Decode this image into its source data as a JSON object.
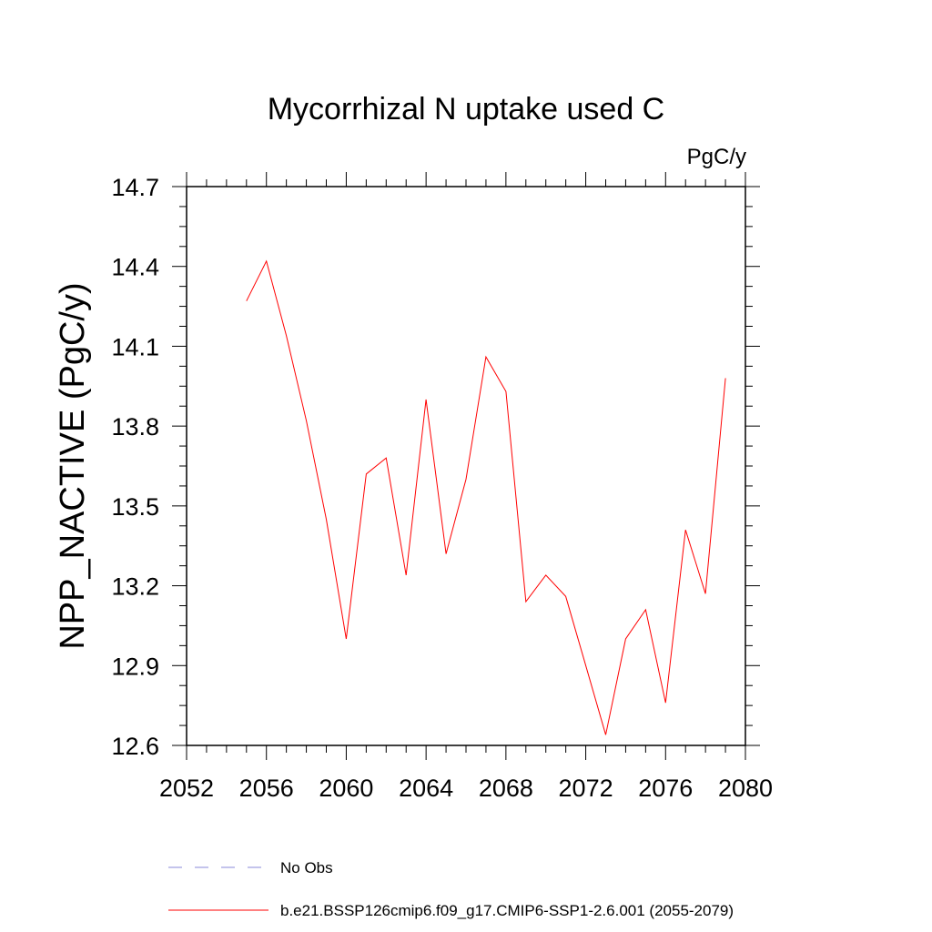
{
  "chart_data": {
    "type": "line",
    "title": "Mycorrhizal N uptake used C",
    "units": "PgC/y",
    "xlabel": "",
    "ylabel": "NPP_NACTIVE  (PgC/y)",
    "xlim": [
      2052,
      2080
    ],
    "ylim": [
      12.6,
      14.7
    ],
    "xticks": [
      2052,
      2056,
      2060,
      2064,
      2068,
      2072,
      2076,
      2080
    ],
    "yticks": [
      12.6,
      12.9,
      13.2,
      13.5,
      13.8,
      14.1,
      14.4,
      14.7
    ],
    "ytick_labels": [
      "12.6",
      "12.9",
      "13.2",
      "13.5",
      "13.8",
      "14.1",
      "14.4",
      "14.7"
    ],
    "grid": false,
    "series": [
      {
        "name": "b.e21.BSSP126cmip6.f09_g17.CMIP6-SSP1-2.6.001 (2055-2079)",
        "color": "#ff0000",
        "style": "solid",
        "x": [
          2055,
          2056,
          2057,
          2058,
          2059,
          2060,
          2061,
          2062,
          2063,
          2064,
          2065,
          2066,
          2067,
          2068,
          2069,
          2070,
          2071,
          2072,
          2073,
          2074,
          2075,
          2076,
          2077,
          2078,
          2079
        ],
        "values": [
          14.27,
          14.42,
          14.14,
          13.82,
          13.45,
          13.0,
          13.62,
          13.68,
          13.24,
          13.9,
          13.32,
          13.6,
          14.06,
          13.93,
          13.14,
          13.24,
          13.16,
          12.9,
          12.64,
          13.0,
          13.11,
          12.76,
          13.41,
          13.17,
          13.98
        ]
      }
    ],
    "legend": [
      {
        "label": "No Obs",
        "color": "#8a8ad8",
        "style": "dashed"
      },
      {
        "label": "b.e21.BSSP126cmip6.f09_g17.CMIP6-SSP1-2.6.001 (2055-2079)",
        "color": "#ff0000",
        "style": "solid"
      }
    ]
  }
}
